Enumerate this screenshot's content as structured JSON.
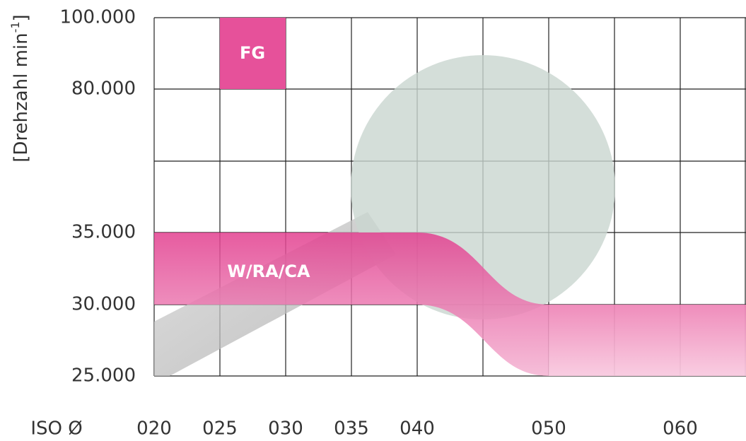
{
  "axis": {
    "title": {
      "text": "[Drehzahl min",
      "sup": "-1",
      "close": "]"
    },
    "y_labels": [
      "100.000",
      "80.000",
      "35.000",
      "30.000",
      "25.000"
    ],
    "x_title": "ISO Ø",
    "x_labels": [
      "020",
      "025",
      "030",
      "035",
      "040",
      "050",
      "060"
    ]
  },
  "regions": [
    {
      "label": "FG"
    },
    {
      "label": "W/RA/CA"
    }
  ]
}
